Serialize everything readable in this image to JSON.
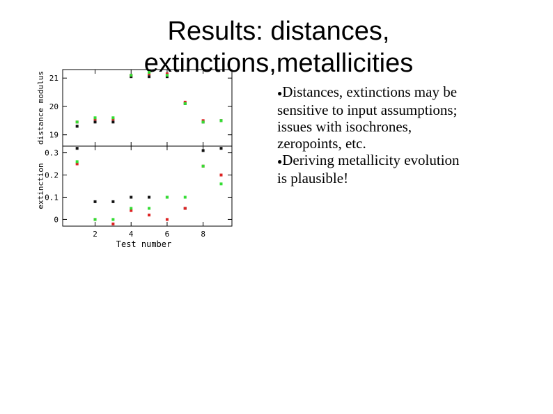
{
  "slide": {
    "title_line1": "Results:  distances,",
    "title_line2": "extinctions,metallicities"
  },
  "bullets": [
    {
      "marker": "●",
      "lines": [
        "Distances, extinctions may be",
        "sensitive to input assumptions;",
        "issues with isochrones,",
        "zeropoints, etc."
      ]
    },
    {
      "marker": "●",
      "lines": [
        "Deriving metallicity evolution",
        "is plausible!"
      ]
    }
  ],
  "chart_data": [
    {
      "type": "scatter",
      "ylabel": "distance modulus",
      "xlim": [
        0.2,
        9.6
      ],
      "ylim": [
        18.6,
        21.3
      ],
      "yticks": [
        19,
        20,
        21
      ],
      "xticks": [
        2,
        4,
        6,
        8
      ],
      "series": [
        {
          "color": "#111111",
          "points": [
            [
              1,
              19.3
            ],
            [
              2,
              19.45
            ],
            [
              3,
              19.45
            ],
            [
              4,
              21.05
            ],
            [
              5,
              21.05
            ],
            [
              6,
              21.05
            ],
            [
              7,
              20.1
            ],
            [
              8,
              19.45
            ],
            [
              9,
              19.5
            ]
          ]
        },
        {
          "color": "#dd2222",
          "points": [
            [
              1,
              19.45
            ],
            [
              2,
              19.55
            ],
            [
              3,
              19.55
            ],
            [
              4,
              21.1
            ],
            [
              5,
              21.15
            ],
            [
              6,
              21.15
            ],
            [
              7,
              20.15
            ],
            [
              8,
              19.5
            ],
            [
              9,
              19.5
            ]
          ]
        },
        {
          "color": "#33dd33",
          "points": [
            [
              1,
              19.45
            ],
            [
              2,
              19.6
            ],
            [
              3,
              19.6
            ],
            [
              4,
              21.1
            ],
            [
              5,
              21.2
            ],
            [
              6,
              21.1
            ],
            [
              7,
              20.1
            ],
            [
              8,
              19.45
            ],
            [
              9,
              19.5
            ]
          ]
        }
      ]
    },
    {
      "type": "scatter",
      "xlabel": "Test number",
      "ylabel": "extinction",
      "xlim": [
        0.2,
        9.6
      ],
      "ylim": [
        -0.03,
        0.33
      ],
      "yticks": [
        0,
        0.1,
        0.2,
        0.3
      ],
      "ytick_labels": [
        "0",
        "0.1",
        "0.2",
        "0.3"
      ],
      "xticks": [
        2,
        4,
        6,
        8
      ],
      "xtick_labels": [
        "2",
        "4",
        "6",
        "8"
      ],
      "series": [
        {
          "color": "#111111",
          "points": [
            [
              1,
              0.32
            ],
            [
              2,
              0.08
            ],
            [
              3,
              0.08
            ],
            [
              4,
              0.1
            ],
            [
              5,
              0.1
            ],
            [
              6,
              0.1
            ],
            [
              7,
              0.05
            ],
            [
              8,
              0.31
            ],
            [
              9,
              0.32
            ]
          ]
        },
        {
          "color": "#dd2222",
          "points": [
            [
              1,
              0.25
            ],
            [
              2,
              0.0
            ],
            [
              3,
              -0.02
            ],
            [
              4,
              0.04
            ],
            [
              5,
              0.02
            ],
            [
              6,
              0.0
            ],
            [
              7,
              0.05
            ],
            [
              8,
              0.24
            ],
            [
              9,
              0.2
            ]
          ]
        },
        {
          "color": "#33dd33",
          "points": [
            [
              1,
              0.26
            ],
            [
              2,
              0.0
            ],
            [
              3,
              0.0
            ],
            [
              4,
              0.05
            ],
            [
              5,
              0.05
            ],
            [
              6,
              0.1
            ],
            [
              7,
              0.1
            ],
            [
              8,
              0.24
            ],
            [
              9,
              0.16
            ]
          ]
        }
      ]
    }
  ]
}
